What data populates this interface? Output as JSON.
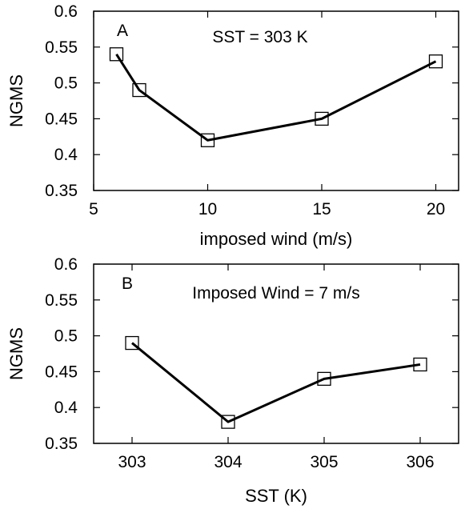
{
  "chart_data": [
    {
      "type": "line",
      "panel_label": "A",
      "annotation": "SST = 303 K",
      "xlabel": "imposed wind (m/s)",
      "ylabel": "NGMS",
      "xlim": [
        5,
        21
      ],
      "ylim": [
        0.35,
        0.6
      ],
      "xticks": [
        5,
        10,
        15,
        20
      ],
      "xtick_labels": [
        "5",
        "10",
        "15",
        "20"
      ],
      "yticks": [
        0.35,
        0.4,
        0.45,
        0.5,
        0.55,
        0.6
      ],
      "ytick_labels": [
        "0.35",
        "0.4",
        "0.45",
        "0.5",
        "0.55",
        "0.6"
      ],
      "grid": false,
      "marker": "square",
      "x": [
        6,
        7,
        10,
        15,
        20
      ],
      "y": [
        0.54,
        0.49,
        0.42,
        0.45,
        0.53
      ]
    },
    {
      "type": "line",
      "panel_label": "B",
      "annotation": "Imposed Wind = 7 m/s",
      "xlabel": "SST (K)",
      "ylabel": "NGMS",
      "xlim": [
        302.6,
        306.4
      ],
      "ylim": [
        0.35,
        0.6
      ],
      "xticks": [
        303,
        304,
        305,
        306
      ],
      "xtick_labels": [
        "303",
        "304",
        "305",
        "306"
      ],
      "yticks": [
        0.35,
        0.4,
        0.45,
        0.5,
        0.55,
        0.6
      ],
      "ytick_labels": [
        "0.35",
        "0.4",
        "0.45",
        "0.5",
        "0.55",
        "0.6"
      ],
      "grid": false,
      "marker": "square",
      "x": [
        303,
        304,
        305,
        306
      ],
      "y": [
        0.49,
        0.38,
        0.44,
        0.46
      ]
    }
  ]
}
